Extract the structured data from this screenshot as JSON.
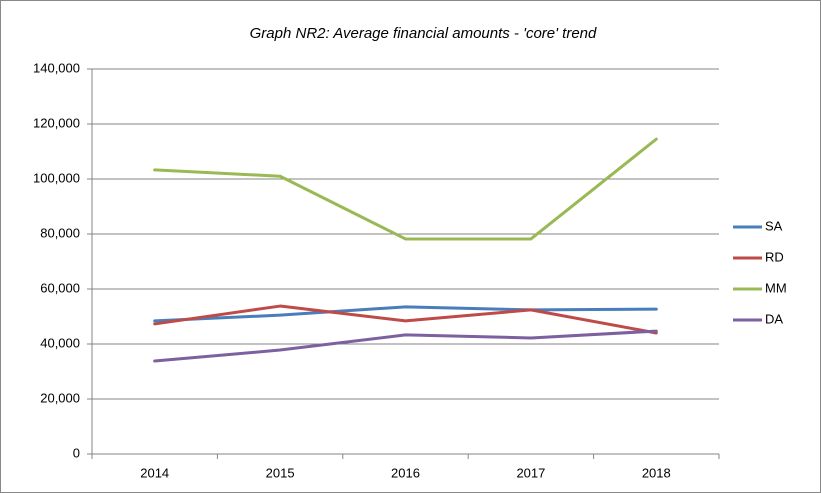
{
  "chart_data": {
    "type": "line",
    "title": "Graph NR2: Average financial amounts - 'core' trend",
    "categories": [
      "2014",
      "2015",
      "2016",
      "2017",
      "2018"
    ],
    "series": [
      {
        "name": "SA",
        "color": "#4a7ebb",
        "values": [
          48400,
          50500,
          53500,
          52400,
          52700
        ]
      },
      {
        "name": "RD",
        "color": "#be4b48",
        "values": [
          47300,
          53800,
          48400,
          52400,
          44000
        ]
      },
      {
        "name": "MM",
        "color": "#98b954",
        "values": [
          103300,
          101000,
          78200,
          78200,
          114500
        ]
      },
      {
        "name": "DA",
        "color": "#7d60a0",
        "values": [
          33800,
          37800,
          43300,
          42200,
          44700
        ]
      }
    ],
    "ylim": [
      0,
      140000
    ],
    "yticks": [
      0,
      {
        "value": 20000,
        "label": "20,000"
      },
      {
        "value": 40000,
        "label": "40,000"
      },
      {
        "value": 60000,
        "label": "60,000"
      },
      {
        "value": 80000,
        "label": "80,000"
      },
      {
        "value": 100000,
        "label": "100,000"
      },
      {
        "value": 120000,
        "label": "120,000"
      },
      {
        "value": 140000,
        "label": "140,000"
      }
    ],
    "grid": true,
    "legend": "right"
  }
}
